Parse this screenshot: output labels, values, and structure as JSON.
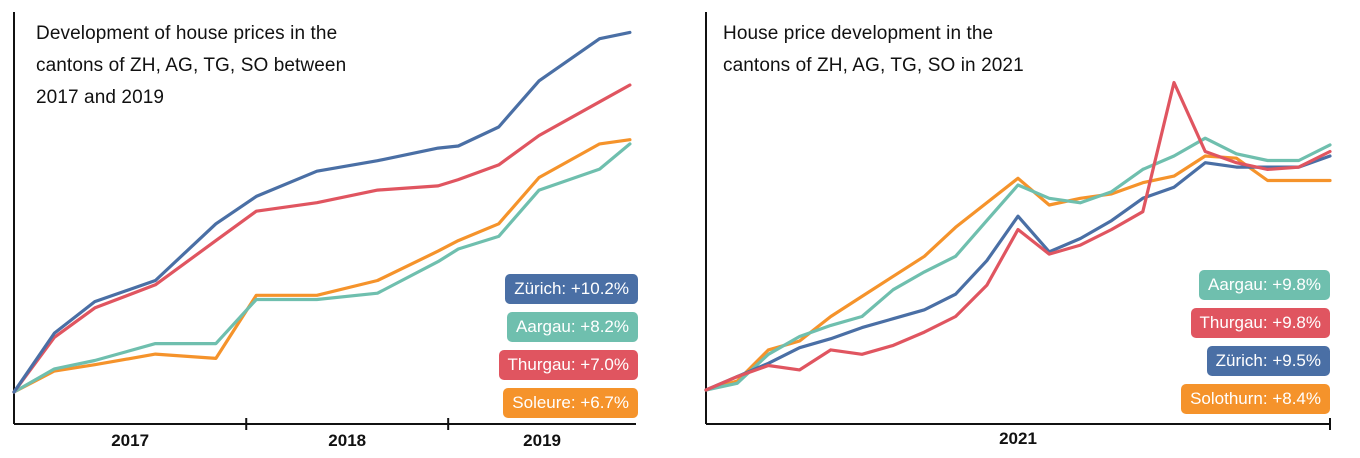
{
  "colors": {
    "zurich": "#4a6fa5",
    "aargau": "#6fbfae",
    "thurgau": "#e05560",
    "solothurn": "#f5932b",
    "axis": "#111111"
  },
  "chart_data": [
    {
      "type": "line",
      "title": "Development of house prices  in the\ncantons of ZH, AG, TG, SO between\n2017 and 2019",
      "xlabel": "",
      "ylabel": "",
      "x_tick_labels": [
        "2017",
        "2018",
        "2019"
      ],
      "x": [
        2016.8,
        2017.0,
        2017.2,
        2017.5,
        2017.8,
        2018.0,
        2018.3,
        2018.6,
        2018.9,
        2019.0,
        2019.2,
        2019.4,
        2019.7,
        2019.85
      ],
      "series": [
        {
          "name": "Zürich: +10.2%",
          "key": "zurich",
          "values": [
            0.0,
            2.8,
            4.3,
            5.3,
            8.0,
            9.3,
            10.5,
            11.0,
            11.6,
            11.7,
            12.6,
            14.8,
            16.8,
            17.1
          ]
        },
        {
          "name": "Aargau: +8.2%",
          "key": "aargau",
          "values": [
            0.0,
            1.1,
            1.5,
            2.3,
            2.3,
            4.4,
            4.4,
            4.7,
            6.2,
            6.8,
            7.4,
            9.6,
            10.6,
            11.8
          ]
        },
        {
          "name": "Thurgau: +7.0%",
          "key": "thurgau",
          "values": [
            0.0,
            2.6,
            4.0,
            5.1,
            7.2,
            8.6,
            9.0,
            9.6,
            9.8,
            10.1,
            10.8,
            12.2,
            13.8,
            14.6
          ]
        },
        {
          "name": "Soleure: +6.7%",
          "key": "solothurn",
          "values": [
            0.0,
            1.0,
            1.3,
            1.8,
            1.6,
            4.6,
            4.6,
            5.3,
            6.7,
            7.2,
            8.0,
            10.2,
            11.8,
            12.0
          ]
        }
      ],
      "grid": false,
      "legend": "bottom-right"
    },
    {
      "type": "line",
      "title": "House price development in the\ncantons of ZH, AG, TG, SO in 2021",
      "xlabel": "",
      "ylabel": "",
      "x_tick_labels": [
        "2021"
      ],
      "x": [
        0,
        5,
        10,
        15,
        20,
        25,
        30,
        35,
        40,
        45,
        50,
        55,
        60,
        65,
        70,
        75,
        80,
        85,
        90,
        95,
        100
      ],
      "series": [
        {
          "name": "Aargau: +9.8%",
          "key": "aargau",
          "values": [
            0.0,
            0.3,
            1.6,
            2.4,
            2.9,
            3.3,
            4.5,
            5.3,
            6.0,
            7.6,
            9.2,
            8.6,
            8.4,
            8.9,
            9.9,
            10.5,
            11.3,
            10.6,
            10.3,
            10.3,
            11.0
          ]
        },
        {
          "name": "Thurgau: +9.8%",
          "key": "thurgau",
          "values": [
            0.0,
            0.6,
            1.1,
            0.9,
            1.8,
            1.6,
            2.0,
            2.6,
            3.3,
            4.7,
            7.2,
            6.1,
            6.5,
            7.2,
            8.0,
            13.8,
            10.7,
            10.2,
            9.9,
            10.0,
            10.7
          ]
        },
        {
          "name": "Zürich: +9.5%",
          "key": "zurich",
          "values": [
            0.0,
            0.6,
            1.2,
            1.9,
            2.3,
            2.8,
            3.2,
            3.6,
            4.3,
            5.8,
            7.8,
            6.2,
            6.8,
            7.6,
            8.6,
            9.1,
            10.2,
            10.0,
            10.0,
            10.0,
            10.5
          ]
        },
        {
          "name": "Solothurn: +8.4%",
          "key": "solothurn",
          "values": [
            0.0,
            0.4,
            1.8,
            2.2,
            3.3,
            4.2,
            5.1,
            6.0,
            7.3,
            8.4,
            9.5,
            8.3,
            8.6,
            8.8,
            9.3,
            9.6,
            10.5,
            10.4,
            9.4,
            9.4,
            9.4
          ]
        }
      ],
      "grid": false,
      "legend": "bottom-right"
    }
  ]
}
